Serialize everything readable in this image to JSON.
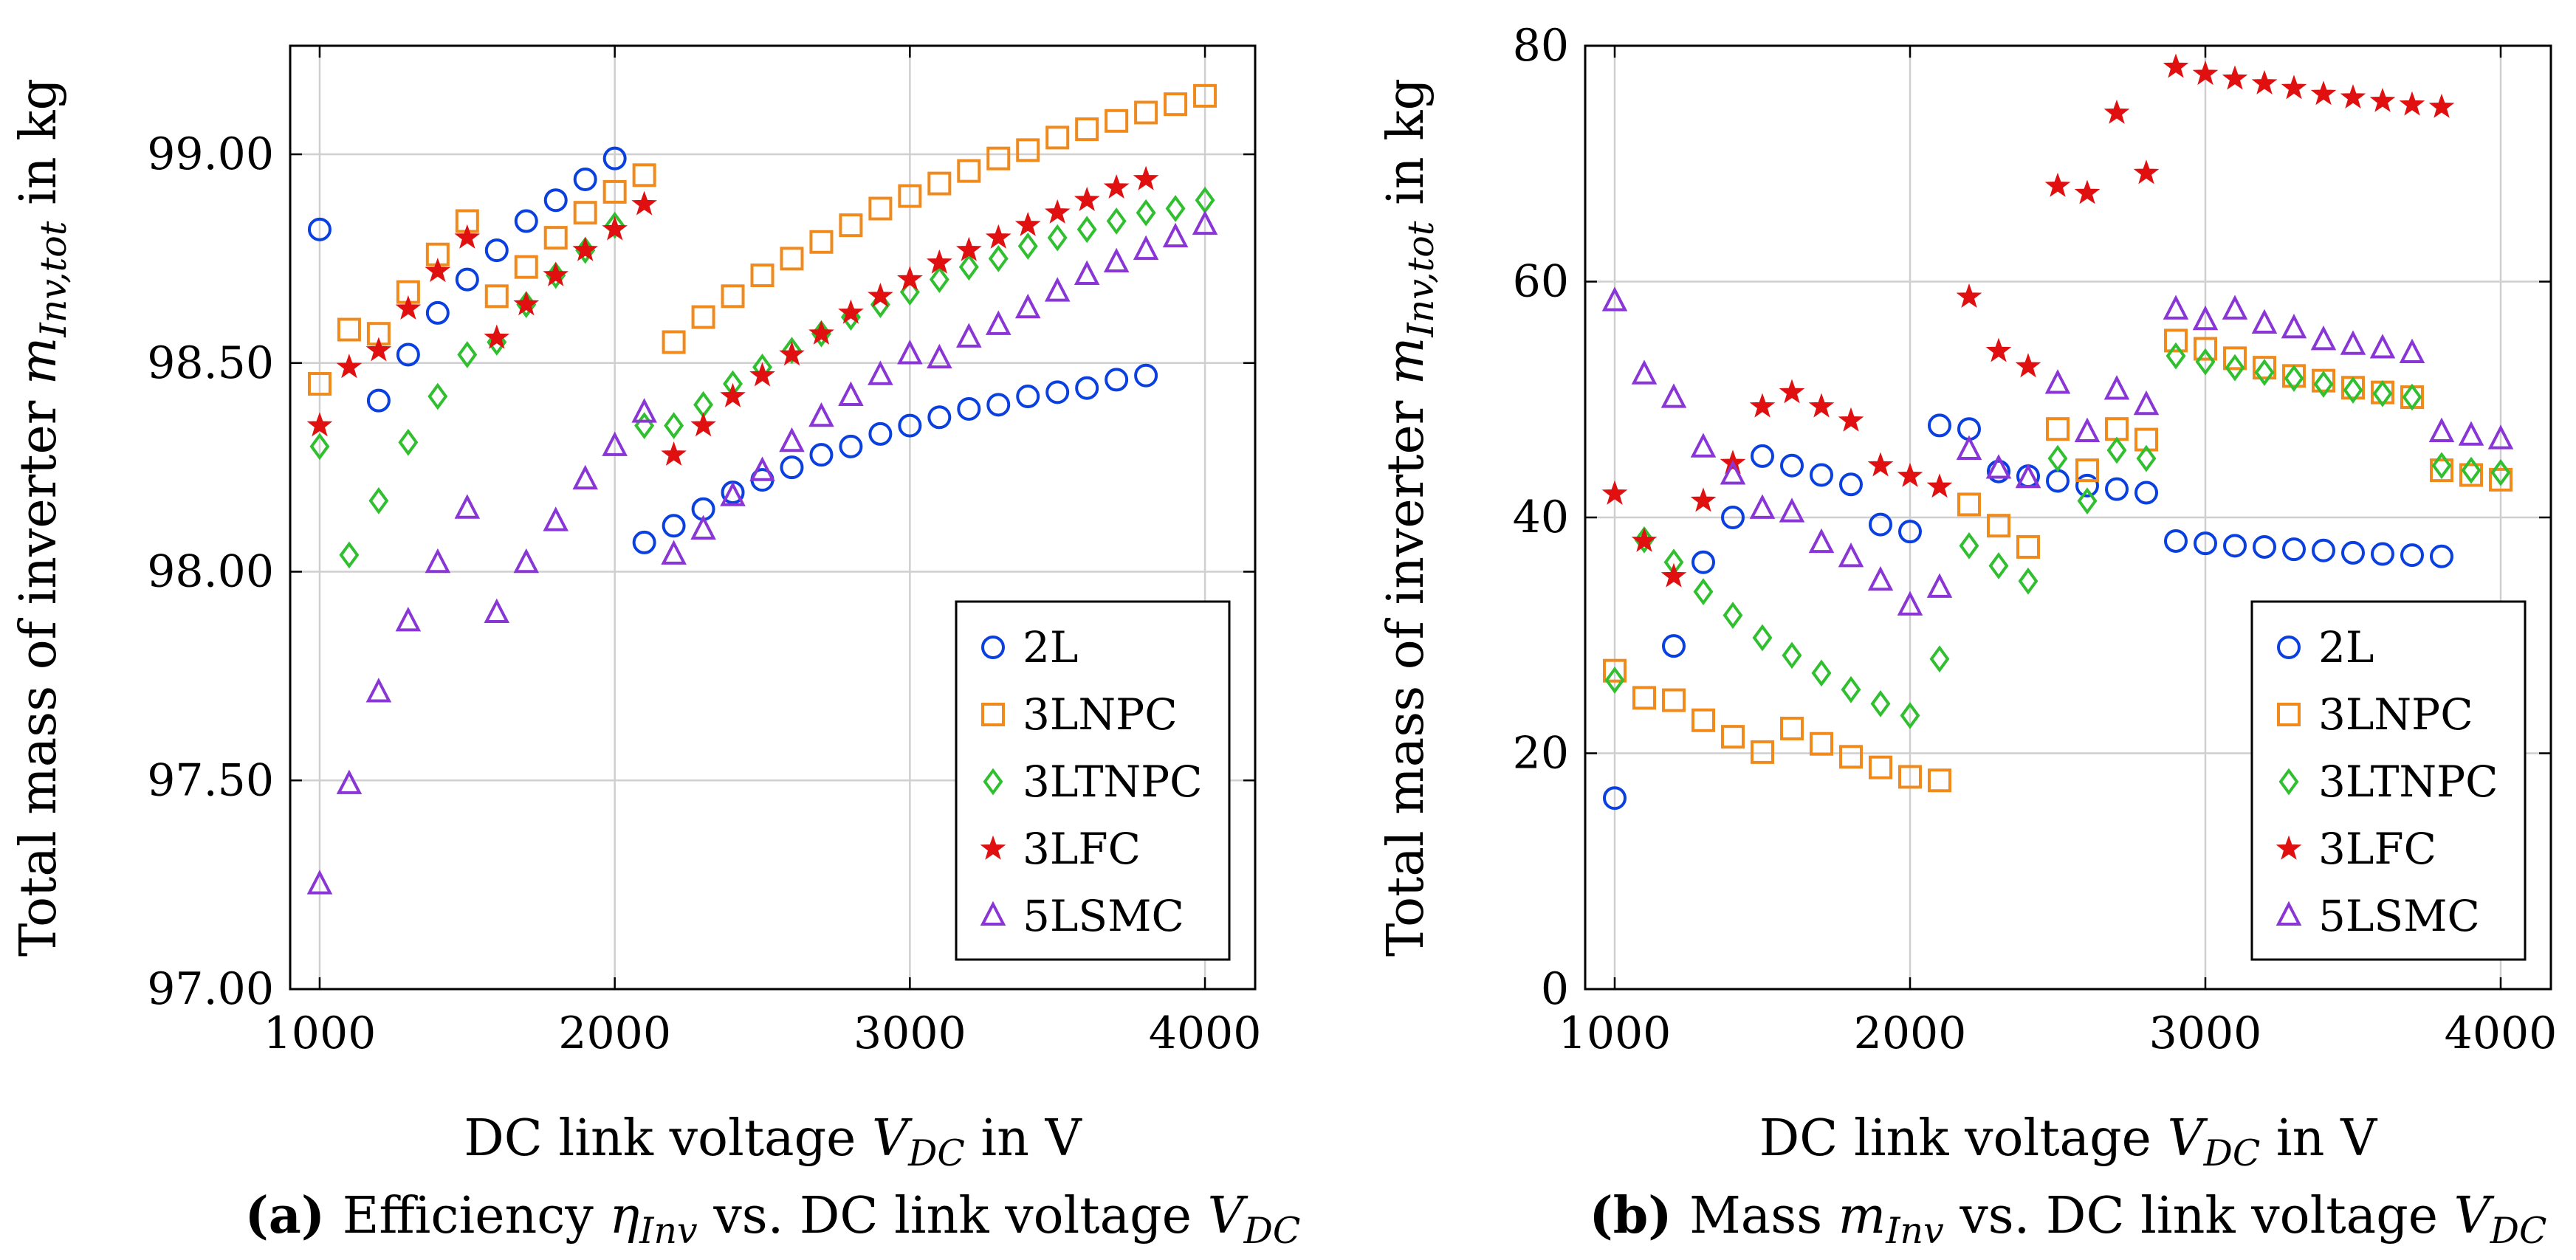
{
  "colors": {
    "2L": "#0a3fe0",
    "3LNPC": "#f08a1c",
    "3LTNPC": "#2fbf2f",
    "3LFC": "#e01010",
    "5LSMC": "#8a35d6"
  },
  "chart_data": [
    {
      "id": "a",
      "type": "scatter",
      "title": "",
      "xlabel": "DC link voltage V_DC in V",
      "ylabel": "Total mass of inverter m_Inv,tot in kg",
      "xlim": [
        900,
        4170
      ],
      "ylim": [
        97.0,
        99.26
      ],
      "xticks": [
        1000,
        2000,
        3000,
        4000
      ],
      "xtick_labels": [
        "1000",
        "2000",
        "3000",
        "4000"
      ],
      "yticks": [
        97.0,
        97.5,
        98.0,
        98.5,
        99.0
      ],
      "ytick_labels": [
        "97.00",
        "97.50",
        "98.00",
        "98.50",
        "99.00"
      ],
      "grid": true,
      "legend_position": "bottom-right",
      "caption": {
        "label": "(a)",
        "text": "Efficiency η_Inv vs. DC link voltage V_DC"
      },
      "series": [
        {
          "name": "2L",
          "marker": "circle",
          "x": [
            1000,
            1200,
            1300,
            1400,
            1500,
            1600,
            1700,
            1800,
            1900,
            2000,
            2100,
            2200,
            2300,
            2400,
            2500,
            2600,
            2700,
            2800,
            2900,
            3000,
            3100,
            3200,
            3300,
            3400,
            3500,
            3600,
            3700,
            3800
          ],
          "y": [
            98.82,
            98.41,
            98.52,
            98.62,
            98.7,
            98.77,
            98.84,
            98.89,
            98.94,
            98.99,
            98.07,
            98.11,
            98.15,
            98.19,
            98.22,
            98.25,
            98.28,
            98.3,
            98.33,
            98.35,
            98.37,
            98.39,
            98.4,
            98.42,
            98.43,
            98.44,
            98.46,
            98.47
          ]
        },
        {
          "name": "3LNPC",
          "marker": "square",
          "x": [
            1000,
            1100,
            1200,
            1300,
            1400,
            1500,
            1600,
            1700,
            1800,
            1900,
            2000,
            2100,
            2200,
            2300,
            2400,
            2500,
            2600,
            2700,
            2800,
            2900,
            3000,
            3100,
            3200,
            3300,
            3400,
            3500,
            3600,
            3700,
            3800,
            3900,
            4000
          ],
          "y": [
            98.45,
            98.58,
            98.57,
            98.67,
            98.76,
            98.84,
            98.66,
            98.73,
            98.8,
            98.86,
            98.91,
            98.95,
            98.55,
            98.61,
            98.66,
            98.71,
            98.75,
            98.79,
            98.83,
            98.87,
            98.9,
            98.93,
            98.96,
            98.99,
            99.01,
            99.04,
            99.06,
            99.08,
            99.1,
            99.12,
            99.14
          ]
        },
        {
          "name": "3LTNPC",
          "marker": "diamond",
          "x": [
            1000,
            1100,
            1200,
            1300,
            1400,
            1500,
            1600,
            1700,
            1800,
            1900,
            2000,
            2100,
            2200,
            2300,
            2400,
            2500,
            2600,
            2700,
            2800,
            2900,
            3000,
            3100,
            3200,
            3300,
            3400,
            3500,
            3600,
            3700,
            3800,
            3900,
            4000
          ],
          "y": [
            98.3,
            98.04,
            98.17,
            98.31,
            98.42,
            98.52,
            98.55,
            98.64,
            98.71,
            98.77,
            98.83,
            98.35,
            98.35,
            98.4,
            98.45,
            98.49,
            98.53,
            98.57,
            98.61,
            98.64,
            98.67,
            98.7,
            98.73,
            98.75,
            98.78,
            98.8,
            98.82,
            98.84,
            98.86,
            98.87,
            98.89
          ]
        },
        {
          "name": "3LFC",
          "marker": "star",
          "x": [
            1000,
            1100,
            1200,
            1300,
            1400,
            1500,
            1600,
            1700,
            1800,
            1900,
            2000,
            2100,
            2200,
            2300,
            2400,
            2500,
            2600,
            2700,
            2800,
            2900,
            3000,
            3100,
            3200,
            3300,
            3400,
            3500,
            3600,
            3700,
            3800
          ],
          "y": [
            98.35,
            98.49,
            98.53,
            98.63,
            98.72,
            98.8,
            98.56,
            98.64,
            98.71,
            98.77,
            98.82,
            98.88,
            98.28,
            98.35,
            98.42,
            98.47,
            98.52,
            98.57,
            98.62,
            98.66,
            98.7,
            98.74,
            98.77,
            98.8,
            98.83,
            98.86,
            98.89,
            98.92,
            98.94
          ]
        },
        {
          "name": "5LSMC",
          "marker": "triangle",
          "x": [
            1000,
            1100,
            1200,
            1300,
            1400,
            1500,
            1600,
            1700,
            1800,
            1900,
            2000,
            2100,
            2200,
            2300,
            2400,
            2500,
            2600,
            2700,
            2800,
            2900,
            3000,
            3100,
            3200,
            3300,
            3400,
            3500,
            3600,
            3700,
            3800,
            3900,
            4000
          ],
          "y": [
            97.25,
            97.49,
            97.71,
            97.88,
            98.02,
            98.15,
            97.9,
            98.02,
            98.12,
            98.22,
            98.3,
            98.38,
            98.04,
            98.1,
            98.18,
            98.24,
            98.31,
            98.37,
            98.42,
            98.47,
            98.52,
            98.51,
            98.56,
            98.59,
            98.63,
            98.67,
            98.71,
            98.74,
            98.77,
            98.8,
            98.83
          ]
        }
      ]
    },
    {
      "id": "b",
      "type": "scatter",
      "title": "",
      "xlabel": "DC link voltage V_DC in V",
      "ylabel": "Total mass of inverter m_Inv,tot in kg",
      "xlim": [
        900,
        4170
      ],
      "ylim": [
        0,
        80
      ],
      "xticks": [
        1000,
        2000,
        3000,
        4000
      ],
      "xtick_labels": [
        "1000",
        "2000",
        "3000",
        "4000"
      ],
      "yticks": [
        0,
        20,
        40,
        60,
        80
      ],
      "ytick_labels": [
        "0",
        "20",
        "40",
        "60",
        "80"
      ],
      "grid": true,
      "legend_position": "bottom-right",
      "caption": {
        "label": "(b)",
        "text": "Mass m_Inv vs. DC link voltage V_DC"
      },
      "series": [
        {
          "name": "2L",
          "marker": "circle",
          "x": [
            1000,
            1200,
            1300,
            1400,
            1500,
            1600,
            1700,
            1800,
            1900,
            2000,
            2100,
            2200,
            2300,
            2400,
            2500,
            2600,
            2700,
            2800,
            2900,
            3000,
            3100,
            3200,
            3300,
            3400,
            3500,
            3600,
            3700,
            3800
          ],
          "y": [
            16.2,
            29.1,
            36.2,
            40.0,
            45.2,
            44.4,
            43.6,
            42.8,
            39.4,
            38.8,
            47.8,
            47.5,
            43.9,
            43.5,
            43.1,
            42.7,
            42.4,
            42.1,
            38.0,
            37.8,
            37.6,
            37.5,
            37.3,
            37.2,
            37.0,
            36.9,
            36.8,
            36.7
          ]
        },
        {
          "name": "3LNPC",
          "marker": "square",
          "x": [
            1000,
            1100,
            1200,
            1300,
            1400,
            1500,
            1600,
            1700,
            1800,
            1900,
            2000,
            2100,
            2200,
            2300,
            2400,
            2500,
            2600,
            2700,
            2800,
            2900,
            3000,
            3100,
            3200,
            3300,
            3400,
            3500,
            3600,
            3700,
            3800,
            3900,
            4000
          ],
          "y": [
            27.0,
            24.7,
            24.5,
            22.8,
            21.4,
            20.1,
            22.1,
            20.8,
            19.7,
            18.8,
            18.0,
            17.7,
            41.1,
            39.3,
            37.5,
            47.5,
            44.0,
            47.5,
            46.6,
            55.0,
            54.3,
            53.5,
            52.7,
            52.0,
            51.6,
            51.0,
            50.6,
            50.2,
            44.0,
            43.6,
            43.2
          ]
        },
        {
          "name": "3LTNPC",
          "marker": "diamond",
          "x": [
            1000,
            1100,
            1200,
            1300,
            1400,
            1500,
            1600,
            1700,
            1800,
            1900,
            2000,
            2100,
            2200,
            2300,
            2400,
            2500,
            2600,
            2700,
            2800,
            2900,
            3000,
            3100,
            3200,
            3300,
            3400,
            3500,
            3600,
            3700,
            3800,
            3900,
            4000
          ],
          "y": [
            26.2,
            38.1,
            36.2,
            33.7,
            31.7,
            29.8,
            28.3,
            26.8,
            25.4,
            24.2,
            23.2,
            28.0,
            37.6,
            35.9,
            34.6,
            45.0,
            41.4,
            45.7,
            45.0,
            53.7,
            53.2,
            52.7,
            52.3,
            51.8,
            51.3,
            50.8,
            50.5,
            50.2,
            44.4,
            44.0,
            43.8
          ]
        },
        {
          "name": "3LFC",
          "marker": "star",
          "x": [
            1000,
            1100,
            1200,
            1300,
            1400,
            1500,
            1600,
            1700,
            1800,
            1900,
            2000,
            2100,
            2200,
            2300,
            2400,
            2500,
            2600,
            2700,
            2800,
            2900,
            3000,
            3100,
            3200,
            3300,
            3400,
            3500,
            3600,
            3700,
            3800
          ],
          "y": [
            42.0,
            38.0,
            35.0,
            41.4,
            44.6,
            49.4,
            50.6,
            49.4,
            48.2,
            44.4,
            43.5,
            42.6,
            58.7,
            54.1,
            52.8,
            68.1,
            67.5,
            74.3,
            69.2,
            78.2,
            77.6,
            77.2,
            76.8,
            76.4,
            75.9,
            75.6,
            75.3,
            75.0,
            74.8
          ]
        },
        {
          "name": "5LSMC",
          "marker": "triangle",
          "x": [
            1000,
            1100,
            1200,
            1300,
            1400,
            1500,
            1600,
            1700,
            1800,
            1900,
            2000,
            2100,
            2200,
            2300,
            2400,
            2500,
            2600,
            2700,
            2800,
            2900,
            3000,
            3100,
            3200,
            3300,
            3400,
            3500,
            3600,
            3700,
            3800,
            3900,
            4000
          ],
          "y": [
            58.3,
            52.1,
            50.1,
            45.9,
            43.6,
            40.7,
            40.4,
            37.8,
            36.6,
            34.6,
            32.5,
            34.0,
            45.7,
            44.1,
            43.3,
            51.3,
            47.2,
            50.8,
            49.5,
            57.6,
            56.7,
            57.6,
            56.4,
            56.0,
            55.0,
            54.6,
            54.3,
            53.9,
            47.2,
            46.9,
            46.6
          ]
        }
      ]
    }
  ]
}
